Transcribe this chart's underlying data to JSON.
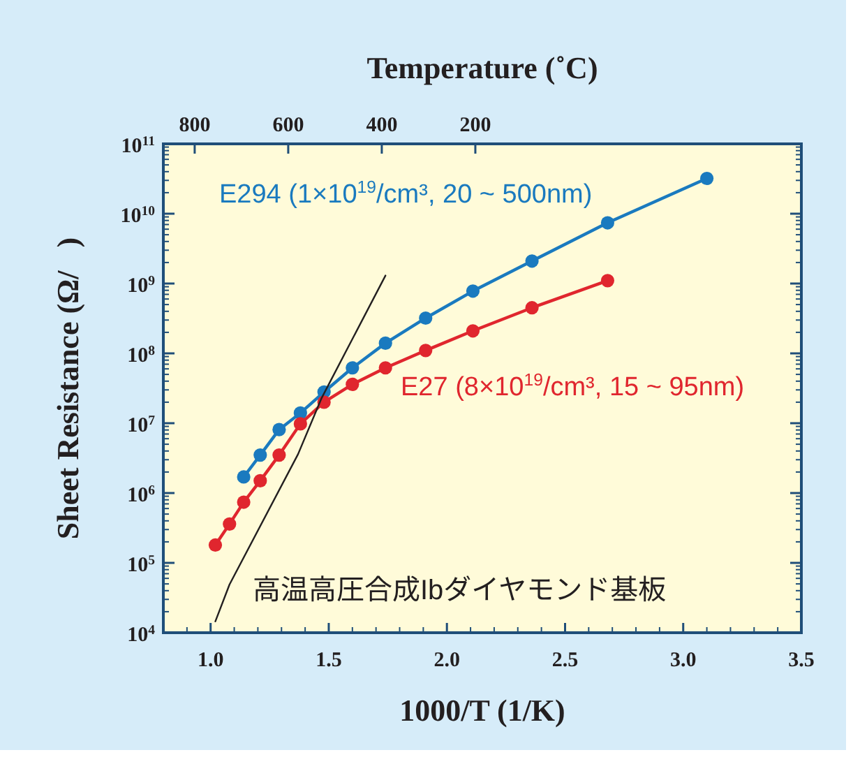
{
  "chart_data": {
    "type": "line",
    "x2label": "Temperature (˚C)",
    "xlabel": "1000/T (1/K)",
    "ylabel": "Sheet Resistance (Ω/   )",
    "xlim": [
      0.8,
      3.5
    ],
    "xticks": [
      {
        "value": 1.0,
        "label": "1.0"
      },
      {
        "value": 1.5,
        "label": "1.5"
      },
      {
        "value": 2.0,
        "label": "2.0"
      },
      {
        "value": 2.5,
        "label": "2.5"
      },
      {
        "value": 3.0,
        "label": "3.0"
      },
      {
        "value": 3.5,
        "label": "3.5"
      }
    ],
    "x2lim": [
      867,
      -497
    ],
    "x2ticks": [
      800,
      600,
      400,
      200
    ],
    "log": "y",
    "ylim": [
      10000,
      100000000000
    ],
    "yticks": [
      {
        "value": 10000,
        "label": "10$^{4}$"
      },
      {
        "value": 100000,
        "label": "10$^{5}$"
      },
      {
        "value": 1000000,
        "label": "10$^{6}$"
      },
      {
        "value": 10000000,
        "label": "10$^{7}$"
      },
      {
        "value": 100000000,
        "label": "10$^{8}$"
      },
      {
        "value": 1000000000,
        "label": "10$^{9}$"
      },
      {
        "value": 10000000000,
        "label": "10$^{10}$"
      },
      {
        "value": 100000000000,
        "label": "10$^{11}$"
      }
    ],
    "grid": false,
    "marker": "circle",
    "line_style": "solid",
    "annotations": [
      "高温高圧合成Ibダイヤモンド基板"
    ],
    "series": [
      {
        "name": "E294 (1×10$^{19}$/cm³, 20 ~ 500nm)",
        "color": "#1a7abf",
        "x": [
          1.14,
          1.21,
          1.29,
          1.38,
          1.48,
          1.6,
          1.74,
          1.91,
          2.11,
          2.36,
          2.68,
          3.1
        ],
        "values": [
          1700000,
          3500000,
          8100000,
          14000000,
          28000000,
          62000000,
          140000000,
          320000000,
          780000000,
          2100000000,
          7400000000,
          32000000000
        ]
      },
      {
        "name": "E27 (8×10$^{19}$/cm³, 15 ~ 95nm)",
        "color": "#e0262e",
        "x": [
          1.02,
          1.08,
          1.14,
          1.21,
          1.29,
          1.38,
          1.48,
          1.6,
          1.74,
          1.91,
          2.11,
          2.36,
          2.68
        ],
        "values": [
          180000,
          360000,
          740000,
          1500000,
          3500000,
          9800000,
          20000000,
          36000000,
          62000000,
          110000000,
          210000000,
          450000000,
          1100000000
        ]
      },
      {
        "color": "#231f20",
        "marker": "none",
        "x": [
          1.02,
          1.08,
          1.37,
          1.47,
          1.74
        ],
        "values": [
          14500,
          49000,
          3600000,
          23000000,
          1300000000
        ]
      }
    ]
  }
}
